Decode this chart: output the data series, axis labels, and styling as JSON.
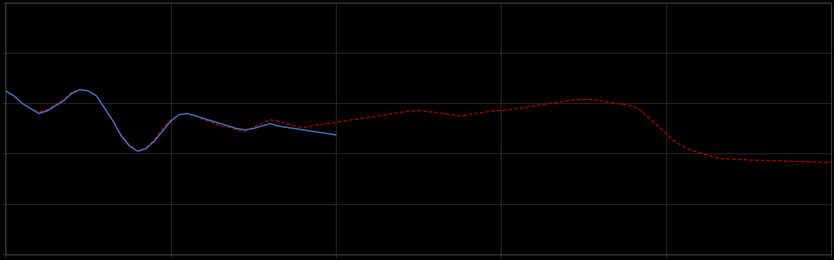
{
  "background_color": "#000000",
  "plot_bg_color": "#000000",
  "grid_color": "#444444",
  "fig_width": 12.09,
  "fig_height": 3.78,
  "dpi": 100,
  "xlim": [
    0,
    100
  ],
  "ylim": [
    0,
    10
  ],
  "blue_line_color": "#4472c4",
  "red_line_color": "#cc0000",
  "blue_linewidth": 1.4,
  "red_linewidth": 1.0,
  "blue_x": [
    0,
    1,
    2,
    3,
    4,
    5,
    6,
    7,
    8,
    9,
    10,
    11,
    12,
    13,
    14,
    15,
    16,
    17,
    18,
    19,
    20,
    21,
    22,
    23,
    24,
    25,
    26,
    27,
    28,
    29,
    30,
    31,
    32,
    33,
    34,
    35,
    36,
    37,
    38,
    39,
    40
  ],
  "blue_y": [
    6.5,
    6.3,
    6.0,
    5.8,
    5.6,
    5.7,
    5.9,
    6.1,
    6.4,
    6.55,
    6.5,
    6.3,
    5.8,
    5.3,
    4.7,
    4.3,
    4.1,
    4.2,
    4.5,
    4.9,
    5.3,
    5.55,
    5.6,
    5.5,
    5.4,
    5.3,
    5.2,
    5.1,
    5.0,
    4.95,
    5.0,
    5.1,
    5.2,
    5.1,
    5.05,
    5.0,
    4.95,
    4.9,
    4.85,
    4.8,
    4.75
  ],
  "red_x": [
    0,
    1,
    2,
    3,
    4,
    5,
    6,
    7,
    8,
    9,
    10,
    11,
    12,
    13,
    14,
    15,
    16,
    17,
    18,
    19,
    20,
    21,
    22,
    23,
    24,
    25,
    26,
    27,
    28,
    29,
    30,
    31,
    32,
    33,
    34,
    35,
    36,
    37,
    38,
    39,
    40,
    41,
    42,
    43,
    44,
    45,
    46,
    47,
    48,
    49,
    50,
    51,
    52,
    53,
    54,
    55,
    56,
    57,
    58,
    59,
    60,
    61,
    62,
    63,
    64,
    65,
    66,
    67,
    68,
    69,
    70,
    71,
    72,
    73,
    74,
    75,
    76,
    77,
    78,
    79,
    80,
    81,
    82,
    83,
    84,
    85,
    86,
    87,
    88,
    89,
    90,
    91,
    92,
    93,
    94,
    95,
    96,
    97,
    98,
    99,
    100
  ],
  "red_y": [
    6.5,
    6.3,
    6.0,
    5.8,
    5.65,
    5.75,
    5.95,
    6.15,
    6.45,
    6.55,
    6.5,
    6.3,
    5.8,
    5.3,
    4.75,
    4.35,
    4.1,
    4.25,
    4.55,
    5.0,
    5.35,
    5.55,
    5.6,
    5.5,
    5.35,
    5.25,
    5.1,
    5.05,
    4.95,
    4.9,
    5.05,
    5.2,
    5.35,
    5.3,
    5.2,
    5.1,
    5.05,
    5.1,
    5.15,
    5.2,
    5.25,
    5.3,
    5.35,
    5.4,
    5.45,
    5.5,
    5.55,
    5.6,
    5.65,
    5.7,
    5.72,
    5.68,
    5.65,
    5.6,
    5.55,
    5.5,
    5.55,
    5.6,
    5.65,
    5.7,
    5.72,
    5.75,
    5.8,
    5.85,
    5.9,
    5.95,
    6.0,
    6.05,
    6.1,
    6.15,
    6.15,
    6.15,
    6.1,
    6.05,
    6.0,
    5.95,
    5.9,
    5.7,
    5.4,
    5.1,
    4.8,
    4.5,
    4.3,
    4.15,
    4.05,
    3.95,
    3.85,
    3.8,
    3.78,
    3.77,
    3.75,
    3.74,
    3.73,
    3.72,
    3.71,
    3.7,
    3.69,
    3.68,
    3.67,
    3.66,
    3.65
  ]
}
